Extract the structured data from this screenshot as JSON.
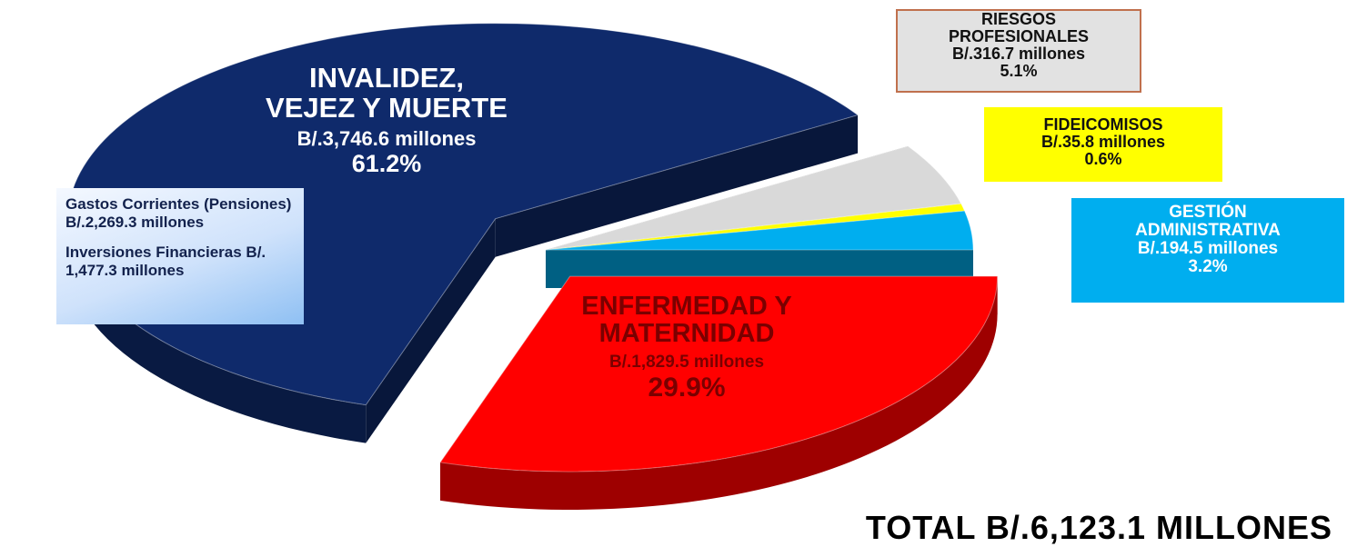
{
  "chart_data": {
    "type": "pie",
    "categories": [
      "ENFERMEDAD Y\nMATERNIDAD",
      "INVALIDEZ,\nVEJEZ Y MUERTE",
      "RIESGOS\nPROFESIONALES",
      "FIDEICOMISOS",
      "GESTIÓN\nADMINISTRATIVA"
    ],
    "values": [
      29.9,
      61.2,
      5.1,
      0.6,
      3.2
    ],
    "value_labels": [
      "29.9%",
      "61.2%",
      "5.1%",
      "0.6%",
      "3.2%"
    ],
    "amount_labels": [
      "B/.1,829.5 millones",
      "B/.3,746.6 millones",
      "B/.316.7 millones",
      "B/.35.8 millones",
      "B/.194.5 millones"
    ],
    "colors": [
      "#ff0000",
      "#0f2a6b",
      "#d9d9d9",
      "#ffff00",
      "#00aeef"
    ],
    "notes": [
      "Gastos Corrientes (Pensiones) B/.2,269.3 millones",
      "Inversiones Financieras B/. 1,477.3 millones"
    ],
    "total": "TOTAL B/.6,123.1 MILLONES"
  }
}
